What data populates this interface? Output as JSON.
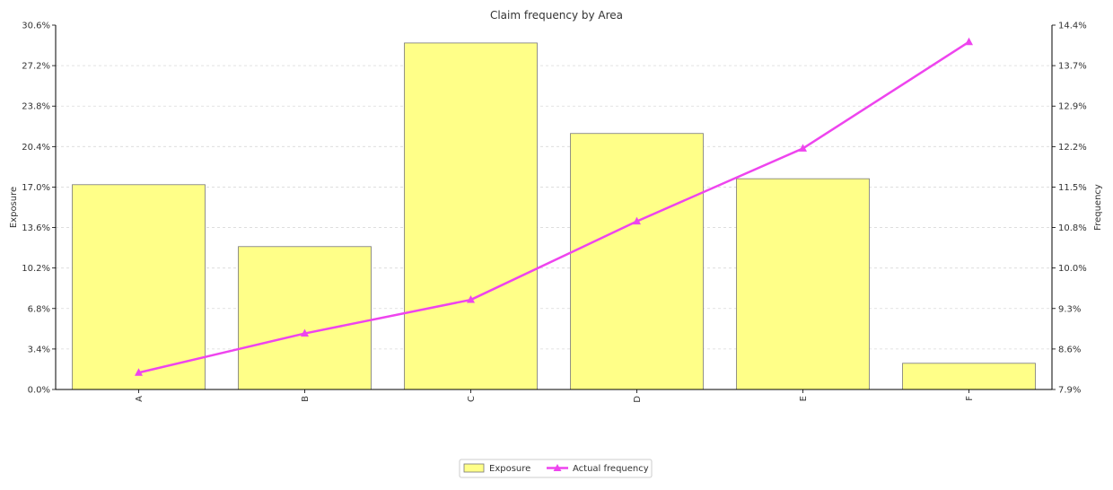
{
  "chart_data": {
    "type": "bar",
    "title": "Claim frequency by Area",
    "categories": [
      "A",
      "B",
      "C",
      "D",
      "E",
      "F"
    ],
    "ylabel_left": "Exposure",
    "ylabel_right": "Frequency",
    "yticks_left": [
      "0.0%",
      "3.4%",
      "6.8%",
      "10.2%",
      "13.6%",
      "17.0%",
      "20.4%",
      "23.8%",
      "27.2%",
      "30.6%"
    ],
    "yticks_right": [
      "7.9%",
      "8.6%",
      "9.3%",
      "10.0%",
      "10.8%",
      "11.5%",
      "12.2%",
      "12.9%",
      "13.7%",
      "14.4%"
    ],
    "ylim_left": [
      0,
      30.6
    ],
    "ylim_right": [
      7.9,
      14.4
    ],
    "grid": true,
    "legend_position": "bottom-center",
    "series": [
      {
        "name": "Exposure",
        "kind": "bar",
        "axis": "left",
        "values": [
          17.2,
          12.0,
          29.1,
          21.5,
          17.7,
          2.2
        ],
        "color": "#ffff88",
        "edge_color": "#777777"
      },
      {
        "name": "Actual frequency",
        "kind": "line",
        "axis": "right",
        "marker": "triangle",
        "values": [
          8.2,
          8.9,
          9.5,
          10.9,
          12.2,
          14.1
        ],
        "color": "#ee44ee"
      }
    ]
  }
}
